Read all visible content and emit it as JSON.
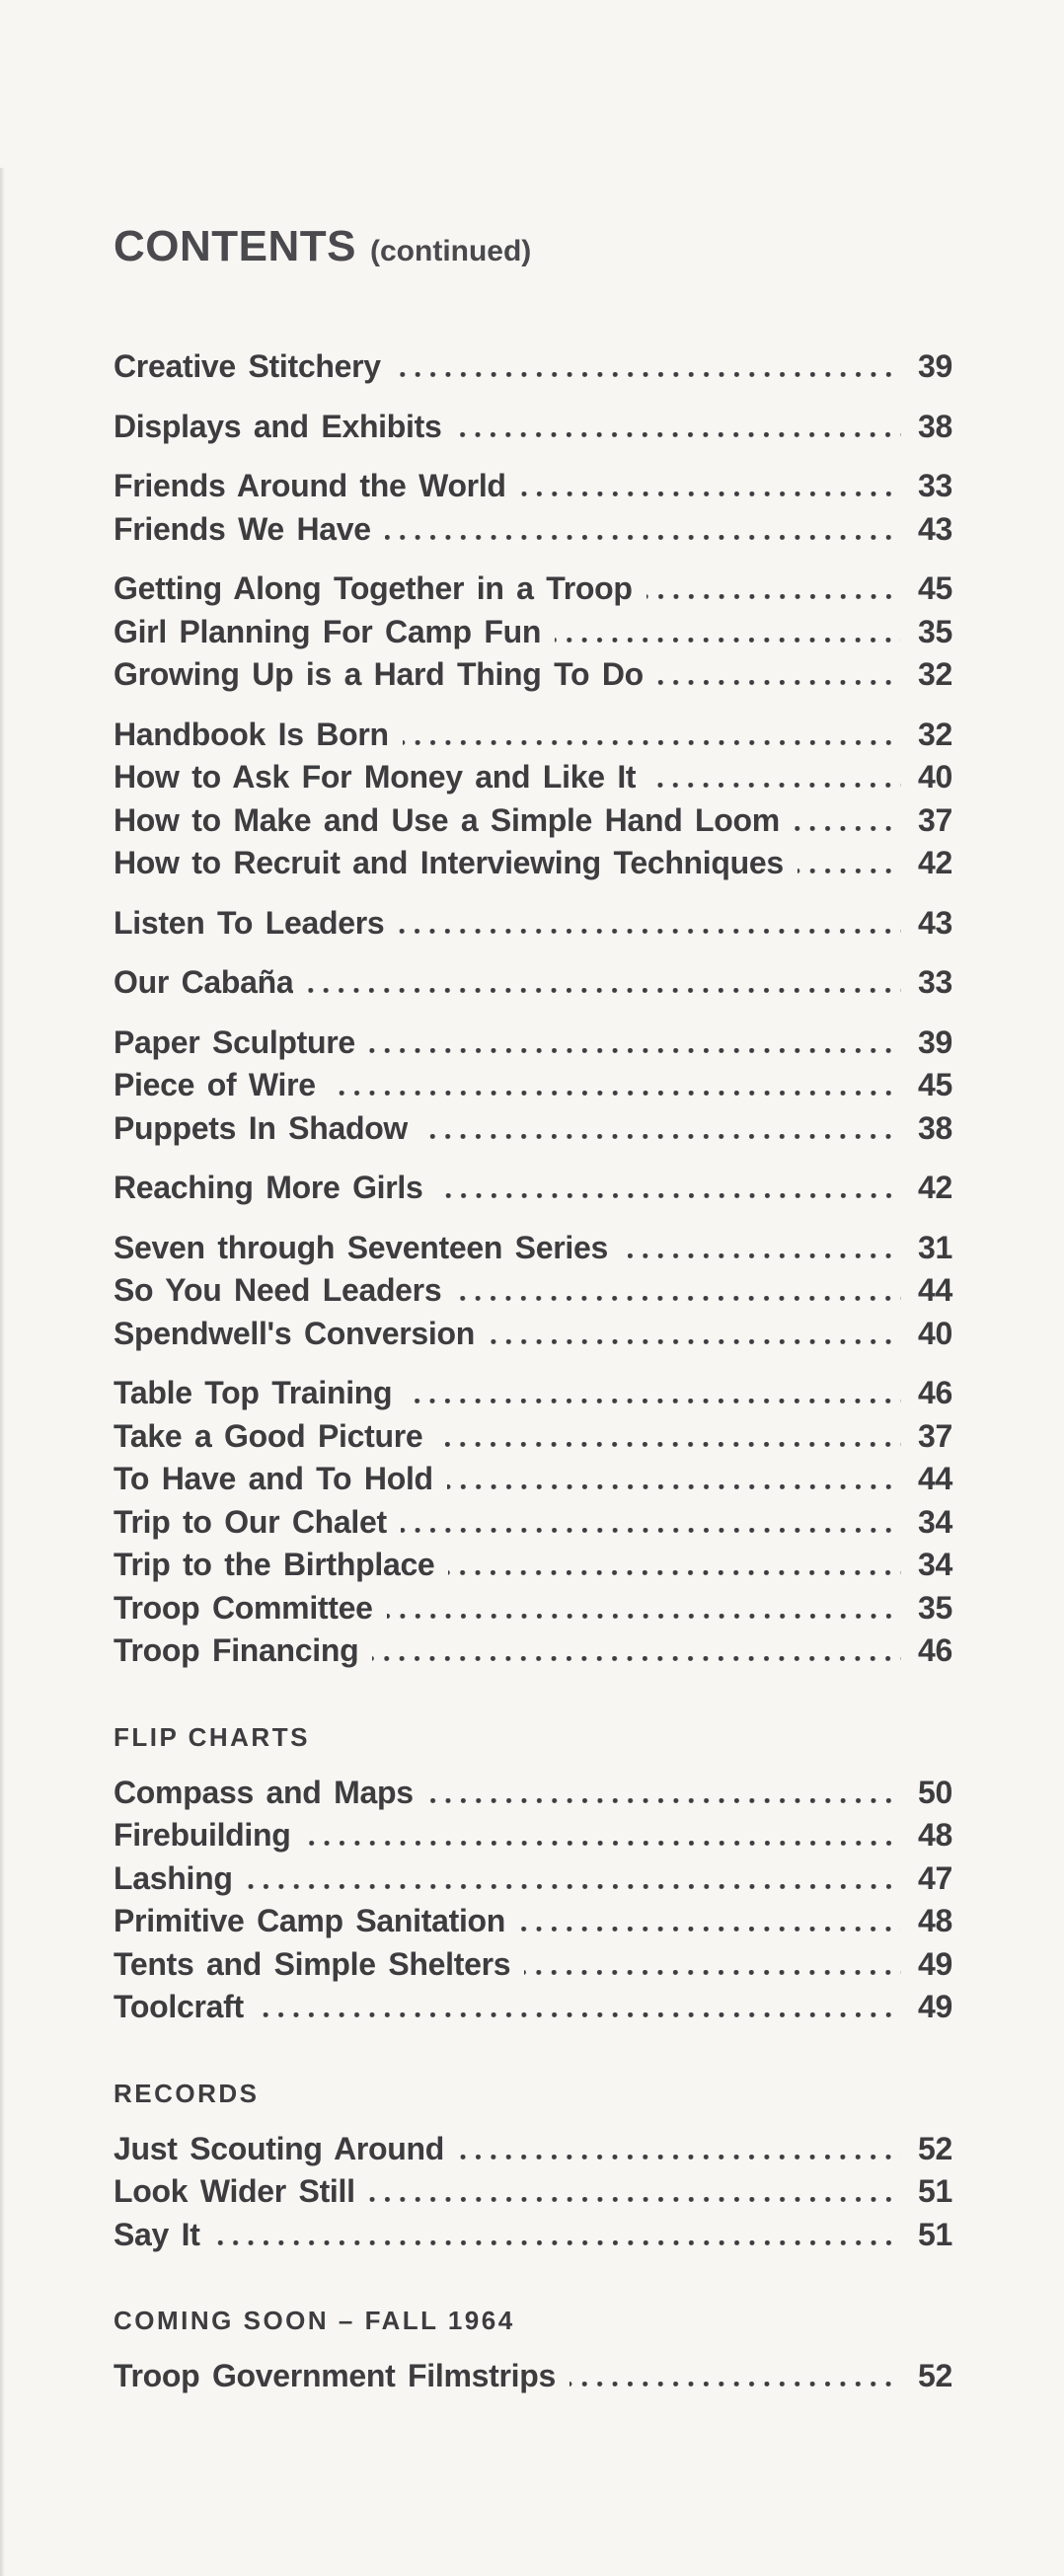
{
  "page": {
    "title": "CONTENTS",
    "title_suffix": "(continued)",
    "ink_color": "#3d3c3f",
    "paper_color": "#f7f6f3"
  },
  "sections": [
    {
      "heading": "",
      "groups": [
        [
          {
            "title": "Creative Stitchery",
            "page": "39"
          }
        ],
        [
          {
            "title": "Displays and Exhibits",
            "page": "38"
          }
        ],
        [
          {
            "title": "Friends Around the World",
            "page": "33"
          },
          {
            "title": "Friends We Have",
            "page": "43"
          }
        ],
        [
          {
            "title": "Getting Along Together in a Troop",
            "page": "45"
          },
          {
            "title": "Girl Planning For Camp Fun",
            "page": "35"
          },
          {
            "title": "Growing Up is a Hard Thing To Do",
            "page": "32"
          }
        ],
        [
          {
            "title": "Handbook Is Born",
            "page": "32"
          },
          {
            "title": "How to Ask For Money and Like It",
            "page": "40"
          },
          {
            "title": "How to Make and Use a Simple Hand Loom",
            "page": "37"
          },
          {
            "title": "How to Recruit and Interviewing Techniques",
            "page": "42"
          }
        ],
        [
          {
            "title": "Listen To Leaders",
            "page": "43"
          }
        ],
        [
          {
            "title": "Our Cabaña",
            "page": "33"
          }
        ],
        [
          {
            "title": "Paper Sculpture",
            "page": "39"
          },
          {
            "title": "Piece of Wire",
            "page": "45"
          },
          {
            "title": "Puppets In Shadow",
            "page": "38"
          }
        ],
        [
          {
            "title": "Reaching More Girls",
            "page": "42"
          }
        ],
        [
          {
            "title": "Seven through Seventeen Series",
            "page": "31"
          },
          {
            "title": "So You Need Leaders",
            "page": "44"
          },
          {
            "title": "Spendwell's Conversion",
            "page": "40"
          }
        ],
        [
          {
            "title": "Table Top Training",
            "page": "46"
          },
          {
            "title": "Take a Good Picture",
            "page": "37"
          },
          {
            "title": "To Have and To Hold",
            "page": "44"
          },
          {
            "title": "Trip to Our Chalet",
            "page": "34"
          },
          {
            "title": "Trip to the Birthplace",
            "page": "34"
          },
          {
            "title": "Troop Committee",
            "page": "35"
          },
          {
            "title": "Troop Financing",
            "page": "46"
          }
        ]
      ]
    },
    {
      "heading": "FLIP CHARTS",
      "groups": [
        [
          {
            "title": "Compass and Maps",
            "page": "50"
          },
          {
            "title": "Firebuilding",
            "page": "48"
          },
          {
            "title": "Lashing",
            "page": "47"
          },
          {
            "title": "Primitive Camp Sanitation",
            "page": "48"
          },
          {
            "title": "Tents and Simple Shelters",
            "page": "49"
          },
          {
            "title": "Toolcraft",
            "page": "49"
          }
        ]
      ]
    },
    {
      "heading": "RECORDS",
      "groups": [
        [
          {
            "title": "Just Scouting Around",
            "page": "52"
          },
          {
            "title": "Look Wider Still",
            "page": "51"
          },
          {
            "title": "Say It",
            "page": "51"
          }
        ]
      ]
    },
    {
      "heading": "COMING SOON – FALL 1964",
      "groups": [
        [
          {
            "title": "Troop Government Filmstrips",
            "page": "52"
          }
        ]
      ]
    }
  ]
}
